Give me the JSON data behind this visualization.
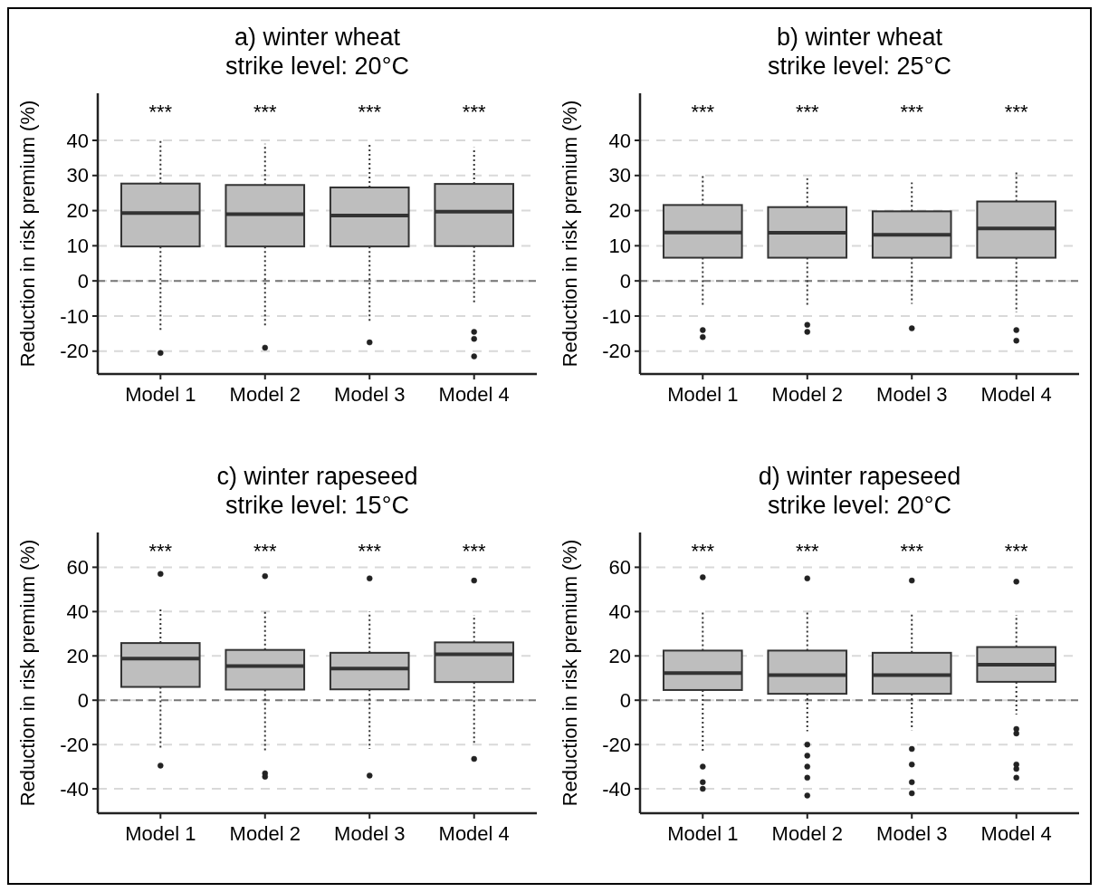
{
  "chart_data": [
    {
      "type": "box",
      "title": "a) winter wheat",
      "subtitle": "strike level: 20°C",
      "ylabel": "Reduction in risk premium (%)",
      "categories": [
        "Model 1",
        "Model 2",
        "Model 3",
        "Model 4"
      ],
      "color": "#bebebe",
      "line_style": "dotted",
      "grid": "y",
      "ylim": [
        -26.5,
        53.4
      ],
      "yticks": [
        -20,
        -10,
        0,
        10,
        20,
        30,
        40
      ],
      "boxes": [
        {
          "low": -14,
          "q1": 9.8,
          "median": 19.3,
          "q3": 27.7,
          "high": 39.8,
          "outliers": [
            -20.5
          ]
        },
        {
          "low": -13,
          "q1": 9.8,
          "median": 19,
          "q3": 27.3,
          "high": 39,
          "outliers": [
            -19
          ]
        },
        {
          "low": -12,
          "q1": 9.8,
          "median": 18.6,
          "q3": 26.6,
          "high": 38.8,
          "outliers": [
            -17.5
          ]
        },
        {
          "low": -6.5,
          "q1": 9.9,
          "median": 19.7,
          "q3": 27.6,
          "high": 38,
          "outliers": [
            -14.5,
            -16.5,
            -21.5
          ]
        }
      ],
      "ref_lines": [
        {
          "axis": "y",
          "value": 0,
          "color": "#777777",
          "line_style": "dashed"
        }
      ],
      "annotations": [
        "***",
        "***",
        "***",
        "***"
      ]
    },
    {
      "type": "box",
      "title": "b) winter wheat",
      "subtitle": "strike level: 25°C",
      "ylabel": "Reduction in risk premium (%)",
      "categories": [
        "Model 1",
        "Model 2",
        "Model 3",
        "Model 4"
      ],
      "color": "#bebebe",
      "line_style": "dotted",
      "grid": "y",
      "ylim": [
        -26.5,
        53.4
      ],
      "yticks": [
        -20,
        -10,
        0,
        10,
        20,
        30,
        40
      ],
      "boxes": [
        {
          "low": -7.5,
          "q1": 6.6,
          "median": 13.8,
          "q3": 21.6,
          "high": 29.8,
          "outliers": [
            -14,
            -16
          ]
        },
        {
          "low": -7,
          "q1": 6.6,
          "median": 13.7,
          "q3": 21,
          "high": 29.2,
          "outliers": [
            -12.5,
            -14.5
          ]
        },
        {
          "low": -6.5,
          "q1": 6.6,
          "median": 13.1,
          "q3": 19.8,
          "high": 28,
          "outliers": [
            -13.5
          ]
        },
        {
          "low": -9,
          "q1": 6.6,
          "median": 14.9,
          "q3": 22.6,
          "high": 31,
          "outliers": [
            -14,
            -17
          ]
        }
      ],
      "ref_lines": [
        {
          "axis": "y",
          "value": 0,
          "color": "#777777",
          "line_style": "dashed"
        }
      ],
      "annotations": [
        "***",
        "***",
        "***",
        "***"
      ]
    },
    {
      "type": "box",
      "title": "c) winter rapeseed",
      "subtitle": "strike level: 15°C",
      "ylabel": "Reduction in risk premium (%)",
      "categories": [
        "Model 1",
        "Model 2",
        "Model 3",
        "Model 4"
      ],
      "color": "#bebebe",
      "line_style": "dotted",
      "grid": "y",
      "ylim": [
        -51,
        75.7
      ],
      "yticks": [
        -40,
        -20,
        0,
        20,
        40,
        60
      ],
      "boxes": [
        {
          "low": -22,
          "q1": 6,
          "median": 18.8,
          "q3": 25.8,
          "high": 41,
          "outliers": [
            57,
            -29.5
          ]
        },
        {
          "low": -23,
          "q1": 4.8,
          "median": 15.4,
          "q3": 22.7,
          "high": 40.5,
          "outliers": [
            56,
            -33,
            -34.5
          ]
        },
        {
          "low": -22,
          "q1": 4.9,
          "median": 14.3,
          "q3": 21.4,
          "high": 40,
          "outliers": [
            55,
            -34
          ]
        },
        {
          "low": -19.5,
          "q1": 8.2,
          "median": 20.7,
          "q3": 26.1,
          "high": 38.5,
          "outliers": [
            54,
            -26.5
          ]
        }
      ],
      "ref_lines": [
        {
          "axis": "y",
          "value": 0,
          "color": "#777777",
          "line_style": "dashed"
        }
      ],
      "annotations": [
        "***",
        "***",
        "***",
        "***"
      ]
    },
    {
      "type": "box",
      "title": "d) winter rapeseed",
      "subtitle": "strike level: 20°C",
      "ylabel": "Reduction in risk premium (%)",
      "categories": [
        "Model 1",
        "Model 2",
        "Model 3",
        "Model 4"
      ],
      "color": "#bebebe",
      "line_style": "dotted",
      "grid": "y",
      "ylim": [
        -51,
        75.7
      ],
      "yticks": [
        -40,
        -20,
        0,
        20,
        40,
        60
      ],
      "boxes": [
        {
          "low": -23,
          "q1": 4.6,
          "median": 12.2,
          "q3": 22.4,
          "high": 40,
          "outliers": [
            55.5,
            -30,
            -37,
            -40
          ]
        },
        {
          "low": -14,
          "q1": 2.9,
          "median": 11.3,
          "q3": 22.4,
          "high": 40,
          "outliers": [
            55,
            -20,
            -25,
            -30,
            -35,
            -43
          ]
        },
        {
          "low": -13.5,
          "q1": 2.9,
          "median": 11.3,
          "q3": 21.4,
          "high": 39.5,
          "outliers": [
            54,
            -22,
            -29,
            -37,
            -42
          ]
        },
        {
          "low": -6.5,
          "q1": 8.3,
          "median": 16,
          "q3": 24,
          "high": 38.5,
          "outliers": [
            53.5,
            -13,
            -15,
            -29,
            -31,
            -35
          ]
        }
      ],
      "ref_lines": [
        {
          "axis": "y",
          "value": 0,
          "color": "#777777",
          "line_style": "dashed"
        }
      ],
      "annotations": [
        "***",
        "***",
        "***",
        "***"
      ]
    }
  ]
}
